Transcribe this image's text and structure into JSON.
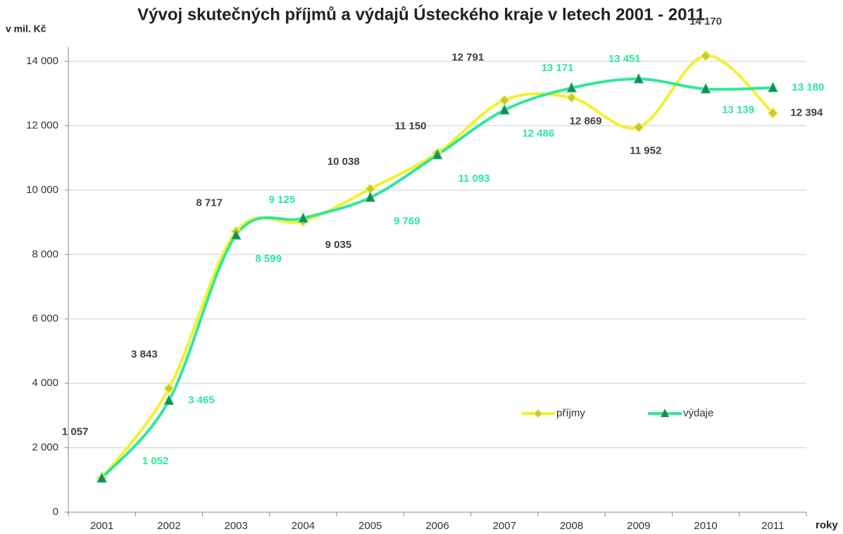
{
  "chart_data": {
    "type": "line",
    "title": "Vývoj skutečných příjmů a výdajů Ústeckého kraje v letech 2001 - 2011",
    "y_label": "v mil. Kč",
    "x_label": "roky",
    "categories": [
      "2001",
      "2002",
      "2003",
      "2004",
      "2005",
      "2006",
      "2007",
      "2008",
      "2009",
      "2010",
      "2011"
    ],
    "series": [
      {
        "name": "příjmy",
        "color": "#f2f22a",
        "marker": "diamond",
        "values": [
          1057,
          3843,
          8717,
          9035,
          10038,
          11150,
          12791,
          12869,
          11952,
          14170,
          12394
        ],
        "value_labels": [
          "1 057",
          "3 843",
          "8 717",
          "9 035",
          "10 038",
          "11 150",
          "12 791",
          "12 869",
          "11 952",
          "14 170",
          "12 394"
        ]
      },
      {
        "name": "výdaje",
        "color": "#2ee89a",
        "marker": "triangle",
        "values": [
          1052,
          3465,
          8599,
          9125,
          9769,
          11093,
          12486,
          13171,
          13451,
          13139,
          13180
        ],
        "value_labels": [
          "1 052",
          "3 465",
          "8 599",
          "9 125",
          "9 769",
          "11 093",
          "12 486",
          "13 171",
          "13 451",
          "13 139",
          "13 180"
        ]
      }
    ],
    "ylim": [
      0,
      14000
    ],
    "yticks": [
      0,
      {
        "value": 2000,
        "label": "2 000"
      },
      {
        "value": 4000,
        "label": "4 000"
      },
      {
        "value": 6000,
        "label": "6 000"
      },
      {
        "value": 8000,
        "label": "8 000"
      },
      {
        "value": 10000,
        "label": "10 000"
      },
      {
        "value": 12000,
        "label": "12 000"
      },
      {
        "value": 14000,
        "label": "14 000"
      }
    ],
    "grid": true,
    "legend": "center"
  }
}
